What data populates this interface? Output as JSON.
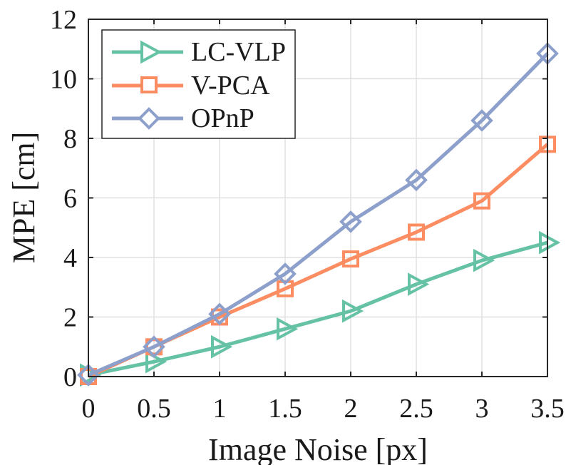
{
  "chart_data": {
    "type": "line",
    "xlabel": "Image Noise [px]",
    "ylabel": "MPE [cm]",
    "xlim": [
      0,
      3.5
    ],
    "ylim": [
      0,
      12
    ],
    "grid": true,
    "legend_position": "top-left",
    "x": [
      0,
      0.5,
      1,
      1.5,
      2,
      2.5,
      3,
      3.5
    ],
    "x_ticks": [
      0,
      0.5,
      1,
      1.5,
      2,
      2.5,
      3,
      3.5
    ],
    "x_tick_labels": [
      "0",
      "0.5",
      "1",
      "1.5",
      "2",
      "2.5",
      "3",
      "3.5"
    ],
    "y_ticks": [
      0,
      2,
      4,
      6,
      8,
      10,
      12
    ],
    "y_tick_labels": [
      "0",
      "2",
      "4",
      "6",
      "8",
      "10",
      "12"
    ],
    "series": [
      {
        "name": "LC-VLP",
        "marker": "triangle-right",
        "color": "#66c2a5",
        "values": [
          0.05,
          0.5,
          1.0,
          1.6,
          2.2,
          3.1,
          3.9,
          4.5
        ]
      },
      {
        "name": "V-PCA",
        "marker": "square",
        "color": "#fc8d62",
        "values": [
          0.0,
          1.0,
          2.0,
          2.95,
          3.95,
          4.85,
          5.9,
          7.8
        ]
      },
      {
        "name": "OPnP",
        "marker": "diamond",
        "color": "#8da0cb",
        "values": [
          0.05,
          1.0,
          2.1,
          3.45,
          5.2,
          6.6,
          8.6,
          10.85
        ]
      }
    ]
  }
}
